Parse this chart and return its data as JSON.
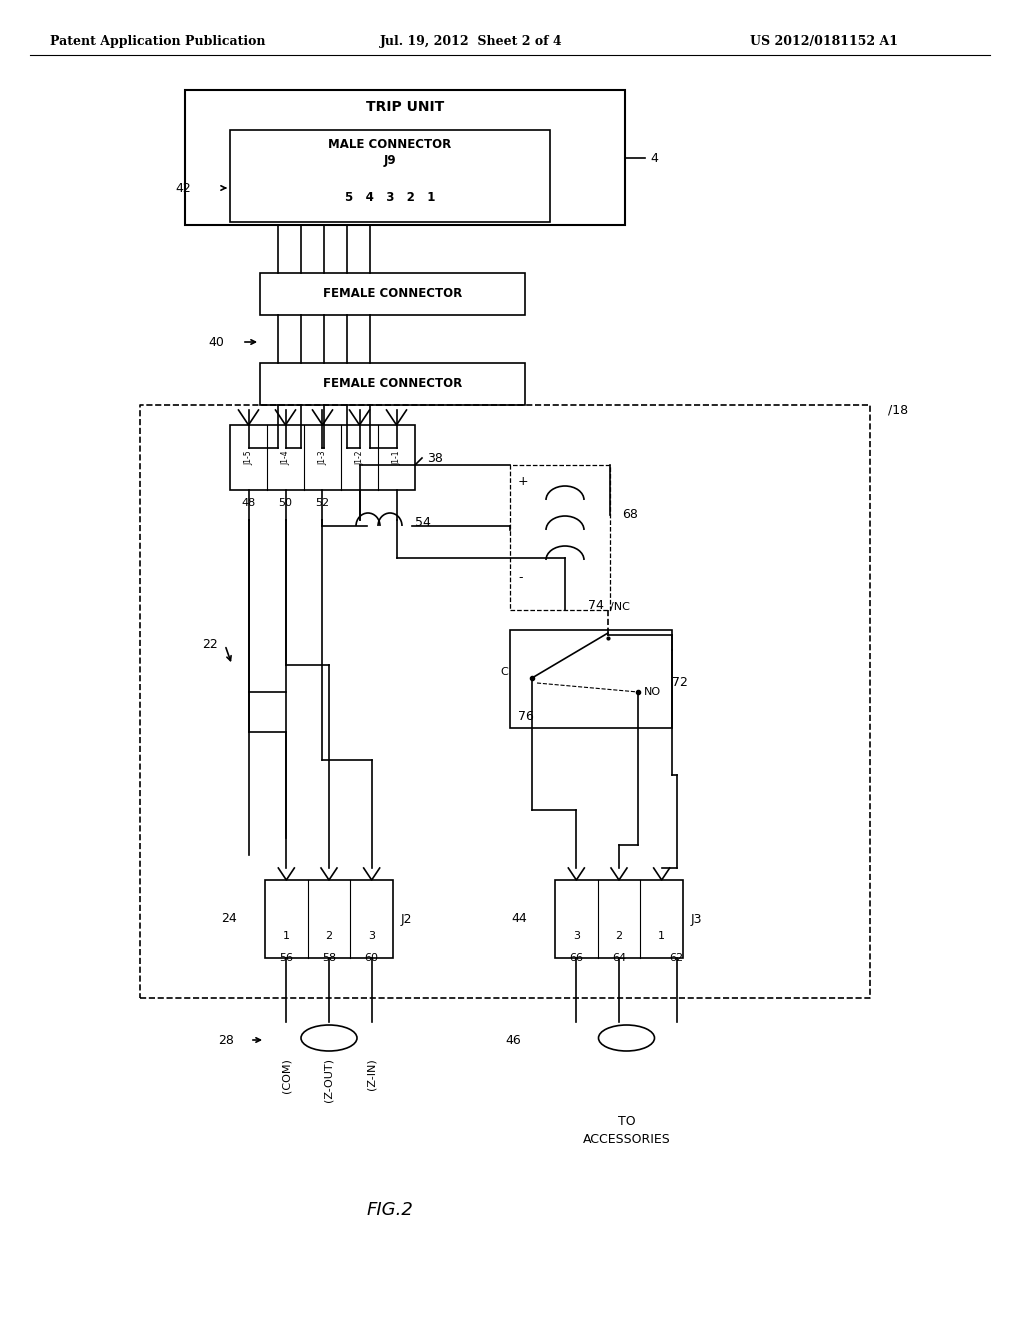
{
  "bg_color": "#ffffff",
  "header_left": "Patent Application Publication",
  "header_mid": "Jul. 19, 2012  Sheet 2 of 4",
  "header_right": "US 2012/0181152 A1",
  "fig_label": "FIG.2",
  "title_text": "TRIP UNIT",
  "female_connector_text": "FEMALE CONNECTOR",
  "j2_text": "J2",
  "j3_text": "J3",
  "label_4": "4",
  "label_18": "18",
  "label_22": "22",
  "label_24": "24",
  "label_28": "28",
  "label_38": "38",
  "label_40": "40",
  "label_42": "42",
  "label_44": "44",
  "label_46": "46",
  "label_48": "48",
  "label_50": "50",
  "label_52": "52",
  "label_54": "54",
  "label_56": "56",
  "label_58": "58",
  "label_60": "60",
  "label_62": "62",
  "label_64": "64",
  "label_66": "66",
  "label_68": "68",
  "label_72": "72",
  "label_74": "74",
  "label_76": "76",
  "text_com": "(COM)",
  "text_zout": "(Z-OUT)",
  "text_zin": "(Z-IN)",
  "text_to_acc": "TO\nACCESSORIES",
  "text_nc": "NC",
  "text_no": "NO",
  "text_c": "C",
  "text_plus": "+",
  "text_minus": "-"
}
